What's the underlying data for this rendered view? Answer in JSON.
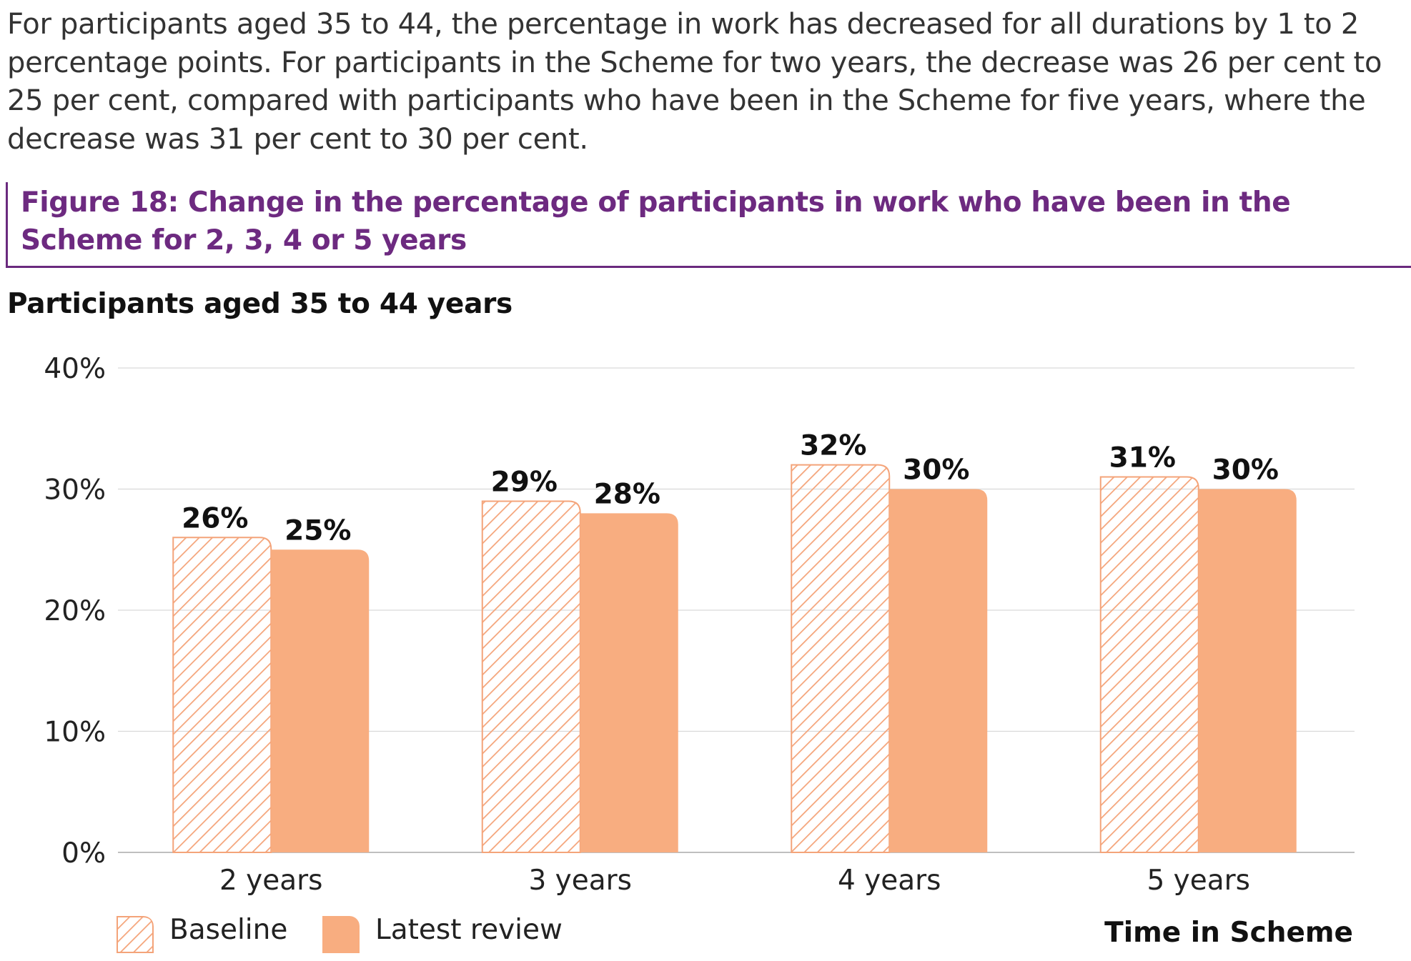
{
  "intro_text": "For participants aged 35 to 44, the percentage in work has decreased for all durations by 1 to 2 percentage points. For participants in the Scheme for two years, the decrease was 26 per cent to 25 per cent, compared with participants who have been in the Scheme for five years, where the decrease was 31 per cent to 30 per cent.",
  "figure_title": "Figure 18: Change in the percentage of participants in work who have been in the Scheme for 2, 3, 4 or 5 years",
  "colors": {
    "accent_purple": "#6d2a80",
    "bar_fill": "#f8ad80",
    "hatch_stroke": "#f4a47a",
    "grid": "#d9d9d9"
  },
  "chart_data": {
    "type": "bar",
    "title": "Participants aged 35 to 44 years",
    "xlabel": "Time in Scheme",
    "ylabel": "",
    "ylim": [
      0,
      40
    ],
    "y_ticks": [
      "0%",
      "10%",
      "20%",
      "30%",
      "40%"
    ],
    "categories": [
      "2 years",
      "3 years",
      "4 years",
      "5 years"
    ],
    "series": [
      {
        "name": "Baseline",
        "values": [
          26,
          29,
          32,
          31
        ],
        "labels": [
          "26%",
          "29%",
          "32%",
          "31%"
        ],
        "style": "hatched"
      },
      {
        "name": "Latest review",
        "values": [
          25,
          28,
          30,
          30
        ],
        "labels": [
          "25%",
          "28%",
          "30%",
          "30%"
        ],
        "style": "solid"
      }
    ],
    "grid": true,
    "legend_position": "bottom-left"
  }
}
